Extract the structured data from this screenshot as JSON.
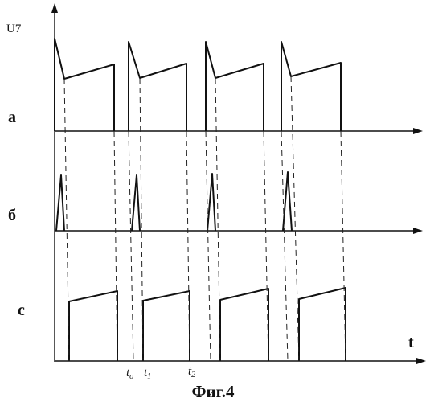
{
  "figure": {
    "caption": "Фиг.4",
    "y_axis_label": "U7",
    "time_axis_label": "t",
    "traces": [
      {
        "label": "a"
      },
      {
        "label": "б"
      },
      {
        "label": "c"
      }
    ],
    "time_markers": [
      {
        "label": "t",
        "subscript": "o"
      },
      {
        "label": "t",
        "subscript": "1"
      },
      {
        "label": "t",
        "subscript": "2"
      }
    ]
  }
}
